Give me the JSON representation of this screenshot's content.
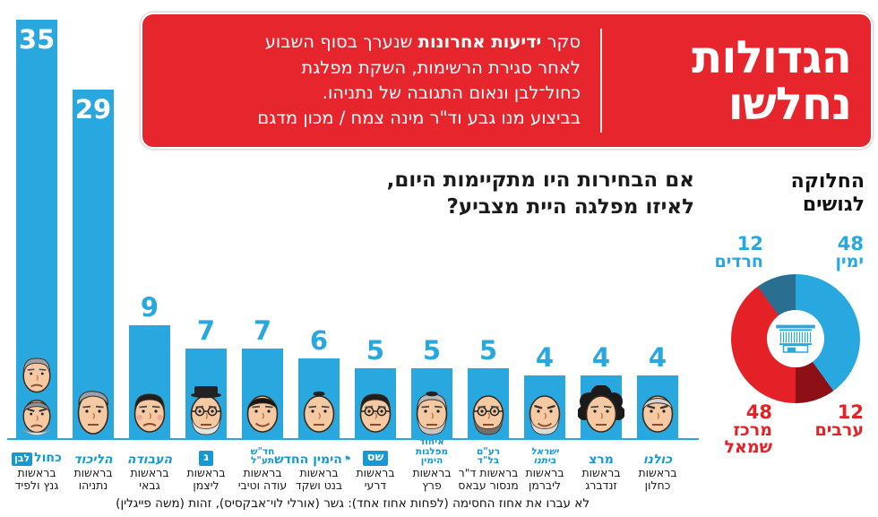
{
  "colors": {
    "accent_blue": "#29a8e0",
    "logo_blue": "#1898d3",
    "header_red": "#e6252c",
    "donut_red": "#e32127",
    "donut_dark_red": "#8c1016",
    "donut_teal": "#2a6f91"
  },
  "header": {
    "title_line1": "הגדולות",
    "title_line2": "נחלשו",
    "desc_prefix": "סקר ",
    "desc_brand": "ידיעות אחרונות",
    "desc_line1_rest": " שנערך בסוף השבוע",
    "desc_line2": "לאחר סגירת הרשימות, השקת מפלגת",
    "desc_line3": "כחול־לבן ונאום התגובה של נתניהו.",
    "credit": "בביצוע מנו גבע וד\"ר מינה צמח / מכון מדגם"
  },
  "question": {
    "line1": "אם הבחירות היו מתקיימות היום,",
    "line2": "לאיזו מפלגה היית מצביע?"
  },
  "bloc_section": {
    "title_line1": "החלוקה",
    "title_line2": "לגושים"
  },
  "footnote": "לא עברו את אחוז החסימה (לפחות אחוז אחד): גשר (אורלי לוי־אבקסיס), זהות (משה פייגלין)",
  "chart_data": [
    {
      "type": "bar",
      "title": "אם הבחירות היו מתקיימות היום, לאיזו מפלגה היית מצביע?",
      "ylim": [
        0,
        35
      ],
      "bar_color": "#29a8e0",
      "grid": false,
      "categories": [
        "כחול לבן",
        "הליכוד",
        "העבודה",
        "ג",
        "חד\"ש תע\"ל",
        "הימין החדש",
        "ש\"ס",
        "איחוד מפלגות הימין",
        "רע\"ם בל\"ד",
        "ישראל ביתנו",
        "מרצ",
        "כולנו"
      ],
      "values": [
        35,
        29,
        9,
        7,
        7,
        6,
        5,
        5,
        5,
        4,
        4,
        4
      ],
      "layout": {
        "left": 18,
        "pitch": 63,
        "width": 46,
        "baseline": 490,
        "heights": [
          468,
          390,
          127,
          101,
          101,
          90,
          79,
          79,
          79,
          71,
          71,
          71
        ]
      },
      "parties": [
        {
          "name": "כחול לבן",
          "seats": 35,
          "leader": "בראשות גנץ ולפיד",
          "leader_lines": [
            "בראשות",
            "גנץ ולפיד"
          ],
          "logo": {
            "kind": "blue-white",
            "text": "כחול",
            "chip": "לבן"
          },
          "faces": [
            {
              "person": "גנץ",
              "hair": "#9aa0a5",
              "style": "side",
              "mouth": "frown"
            },
            {
              "person": "לפיד",
              "hair": "#8d9399",
              "style": "top",
              "collar": true,
              "brows": "angry",
              "mouth": "frown"
            }
          ]
        },
        {
          "name": "הליכוד",
          "seats": 29,
          "leader": "בראשות נתניהו",
          "leader_lines": [
            "בראשות",
            "נתניהו"
          ],
          "logo": {
            "kind": "text",
            "italic": true,
            "lines": [
              "הליכוד"
            ],
            "big": true
          },
          "faces": [
            {
              "person": "נתניהו",
              "hair": "#9aa0a5",
              "style": "combover",
              "tall": true,
              "mouth": "neutral"
            }
          ]
        },
        {
          "name": "העבודה",
          "seats": 9,
          "leader": "בראשות גבאי",
          "leader_lines": [
            "בראשות",
            "גבאי"
          ],
          "logo": {
            "kind": "text",
            "italic": true,
            "lines": [
              "העבודה"
            ],
            "big": true
          },
          "faces": [
            {
              "person": "גבאי",
              "hair": "#1f1f1f",
              "style": "side",
              "cheeks": true,
              "mouth": "frown"
            }
          ]
        },
        {
          "name": "ג",
          "seats": 7,
          "leader": "בראשות ליצמן",
          "leader_lines": [
            "בראשות",
            "ליצמן"
          ],
          "logo": {
            "kind": "chip",
            "text": "ג"
          },
          "faces": [
            {
              "person": "ליצמן",
              "hair": "#d8d8d8",
              "style": "hat",
              "beard": "#e4e4e4",
              "glasses": true,
              "mouth": "neutral"
            }
          ]
        },
        {
          "name": "חד\"ש תע\"ל",
          "seats": 7,
          "leader": "בראשות עודה וטיבי",
          "leader_lines": [
            "בראשות",
            "עודה וטיבי"
          ],
          "logo": {
            "kind": "text",
            "lines": [
              "חד\"ש",
              "תע\"ל"
            ]
          },
          "faces": [
            {
              "person": "עודה",
              "hair": "#161616",
              "style": "top",
              "mouth": "smile"
            }
          ]
        },
        {
          "name": "הימין החדש",
          "seats": 6,
          "leader": "בראשות בנט ושקד",
          "leader_lines": [
            "בראשות",
            "בנט ושקד"
          ],
          "logo": {
            "kind": "flag-text",
            "lines": [
              "הימין החדש"
            ]
          },
          "faces": [
            {
              "person": "בנט",
              "style": "bald",
              "kippah": true,
              "mouth": "neutral"
            }
          ]
        },
        {
          "name": "ש\"ס",
          "seats": 5,
          "leader": "בראשות דרעי",
          "leader_lines": [
            "בראשות",
            "דרעי"
          ],
          "logo": {
            "kind": "chip",
            "text": "שס"
          },
          "faces": [
            {
              "person": "דרעי",
              "hair": "#1f1f1f",
              "style": "side",
              "glasses": true,
              "mouth": "neutral"
            }
          ]
        },
        {
          "name": "איחוד מפלגות הימין",
          "seats": 5,
          "leader": "בראשות פרץ",
          "leader_lines": [
            "בראשות",
            "פרץ"
          ],
          "logo": {
            "kind": "text",
            "lines": [
              "איחוד",
              "מפלגות",
              "הימין"
            ]
          },
          "faces": [
            {
              "person": "פרץ",
              "hair": "#b9b9b9",
              "style": "side",
              "beard": "#c6c6c6",
              "kippah": true,
              "mouth": "neutral"
            }
          ]
        },
        {
          "name": "רע\"ם בל\"ד",
          "seats": 5,
          "leader": "בראשות ד\"ר מנסור עבאס",
          "leader_lines": [
            "בראשות ד\"ר",
            "מנסור עבאס"
          ],
          "logo": {
            "kind": "text",
            "lines": [
              "רע\"ם",
              "בל\"ד"
            ]
          },
          "faces": [
            {
              "person": "מנסור עבאס",
              "style": "bald",
              "glasses": true,
              "beard": "#6f6f6f",
              "mouth": "neutral"
            }
          ]
        },
        {
          "name": "ישראל ביתנו",
          "seats": 4,
          "leader": "בראשות ליברמן",
          "leader_lines": [
            "בראשות",
            "ליברמן"
          ],
          "logo": {
            "kind": "text",
            "italic": true,
            "lines": [
              "ישראל",
              "ביתנו"
            ]
          },
          "faces": [
            {
              "person": "ליברמן",
              "style": "bald",
              "beard": "#dcdcdc",
              "brows": "angry",
              "mouth": "smile"
            }
          ]
        },
        {
          "name": "מרצ",
          "seats": 4,
          "leader": "בראשות זנדברג",
          "leader_lines": [
            "בראשות",
            "זנדברג"
          ],
          "logo": {
            "kind": "text",
            "lines": [
              "מרצ"
            ],
            "big": true
          },
          "faces": [
            {
              "person": "זנדברג",
              "hair": "#1a1a1a",
              "style": "curly",
              "mouth": "neutral"
            }
          ]
        },
        {
          "name": "כולנו",
          "seats": 4,
          "leader": "בראשות כחלון",
          "leader_lines": [
            "בראשות",
            "כחלון"
          ],
          "logo": {
            "kind": "text",
            "italic": true,
            "lines": [
              "כולנו"
            ],
            "big": true
          },
          "faces": [
            {
              "person": "כחלון",
              "hair": "#d3d3d3",
              "style": "top",
              "brows": "angry",
              "mouth": "neutral"
            }
          ]
        }
      ]
    },
    {
      "type": "pie",
      "donut": true,
      "title": "החלוקה לגושים",
      "total": 120,
      "center_icon": "knesset",
      "slices": [
        {
          "label": "ימין",
          "value": 48,
          "color": "#29a8e0",
          "label_color": "#29a8e0"
        },
        {
          "label": "ערבים",
          "value": 12,
          "color": "#8c1016",
          "label_color": "#e32127"
        },
        {
          "label": "מרכז שמאל",
          "value": 48,
          "color": "#e32127",
          "label_color": "#e32127"
        },
        {
          "label": "חרדים",
          "value": 12,
          "color": "#2a6f91",
          "label_color": "#29a8e0"
        }
      ]
    }
  ]
}
